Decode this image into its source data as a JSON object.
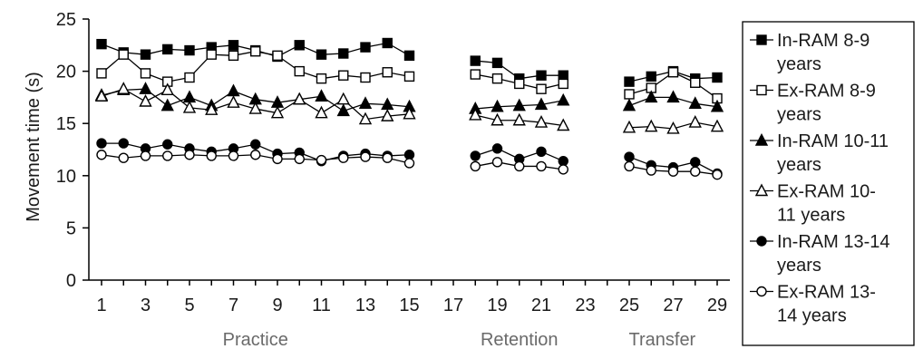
{
  "chart_data": {
    "type": "line",
    "ylabel": "Movement time (s)",
    "xlabel": "",
    "ylim": [
      0,
      25
    ],
    "yticks": [
      0,
      5,
      10,
      15,
      20,
      25
    ],
    "xlim": [
      1,
      29
    ],
    "xticks": [
      1,
      3,
      5,
      7,
      9,
      11,
      13,
      15,
      17,
      19,
      21,
      23,
      25,
      27,
      29
    ],
    "phase_labels": [
      {
        "text": "Practice",
        "x": 8
      },
      {
        "text": "Retention",
        "x": 20
      },
      {
        "text": "Transfer",
        "x": 26.5
      }
    ],
    "grid": false,
    "legend_position": "right",
    "segments": [
      [
        1,
        2,
        3,
        4,
        5,
        6,
        7,
        8,
        9,
        10,
        11,
        12,
        13,
        14,
        15
      ],
      [
        18,
        19,
        20,
        21,
        22
      ],
      [
        25,
        26,
        27,
        28,
        29
      ]
    ],
    "series": [
      {
        "name": "In-RAM 8-9 years",
        "legend_lines": [
          "In-RAM 8-9",
          "years"
        ],
        "marker": "square",
        "filled": true,
        "values": [
          22.6,
          21.8,
          21.6,
          22.1,
          22.0,
          22.3,
          22.5,
          22.0,
          21.4,
          22.5,
          21.6,
          21.7,
          22.3,
          22.7,
          21.5,
          21.0,
          20.8,
          19.3,
          19.6,
          19.6,
          19.0,
          19.5,
          20.0,
          19.3,
          19.4
        ]
      },
      {
        "name": "Ex-RAM 8-9 years",
        "legend_lines": [
          "Ex-RAM 8-9",
          "years"
        ],
        "marker": "square",
        "filled": false,
        "values": [
          19.8,
          21.6,
          19.8,
          19.0,
          19.4,
          21.6,
          21.5,
          21.9,
          21.5,
          20.0,
          19.3,
          19.6,
          19.4,
          19.9,
          19.5,
          19.7,
          19.3,
          18.8,
          18.3,
          18.8,
          17.8,
          18.4,
          19.9,
          18.9,
          17.4
        ]
      },
      {
        "name": "In-RAM 10-11 years",
        "legend_lines": [
          "In-RAM 10-11",
          "years"
        ],
        "marker": "triangle",
        "filled": true,
        "values": [
          17.7,
          18.2,
          18.3,
          16.7,
          17.5,
          16.7,
          18.1,
          17.3,
          17.0,
          17.3,
          17.6,
          16.2,
          16.9,
          16.8,
          16.6,
          16.4,
          16.6,
          16.7,
          16.8,
          17.2,
          16.7,
          17.5,
          17.5,
          16.9,
          16.6
        ]
      },
      {
        "name": "Ex-RAM 10-11 years",
        "legend_lines": [
          "Ex-RAM 10-",
          "11 years"
        ],
        "marker": "triangle",
        "filled": false,
        "values": [
          17.6,
          18.3,
          17.1,
          18.2,
          16.5,
          16.3,
          17.0,
          16.4,
          16.0,
          17.3,
          16.0,
          17.3,
          15.4,
          15.7,
          15.9,
          15.8,
          15.3,
          15.3,
          15.1,
          14.8,
          14.6,
          14.7,
          14.5,
          15.1,
          14.7
        ]
      },
      {
        "name": "In-RAM 13-14 years",
        "legend_lines": [
          "In-RAM 13-14",
          "years"
        ],
        "marker": "circle",
        "filled": true,
        "values": [
          13.1,
          13.1,
          12.6,
          13.0,
          12.6,
          12.3,
          12.6,
          13.0,
          12.1,
          12.2,
          11.4,
          11.9,
          12.1,
          11.9,
          12.0,
          11.9,
          12.6,
          11.6,
          12.3,
          11.4,
          11.8,
          11.0,
          10.8,
          11.3,
          10.2
        ]
      },
      {
        "name": "Ex-RAM 13-14 years",
        "legend_lines": [
          "Ex-RAM 13-",
          "14 years"
        ],
        "marker": "circle",
        "filled": false,
        "values": [
          12.0,
          11.7,
          11.9,
          11.9,
          12.0,
          11.9,
          11.9,
          12.0,
          11.6,
          11.6,
          11.5,
          11.7,
          11.8,
          11.7,
          11.2,
          10.9,
          11.3,
          10.9,
          10.9,
          10.6,
          10.9,
          10.5,
          10.4,
          10.4,
          10.1
        ]
      }
    ]
  }
}
